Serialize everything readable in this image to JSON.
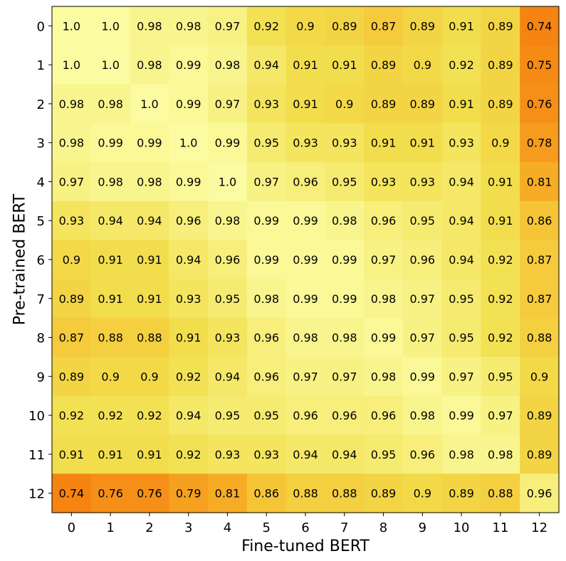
{
  "chart_data": {
    "type": "heatmap",
    "title": "",
    "xlabel": "Fine-tuned BERT",
    "ylabel": "Pre-trained BERT",
    "x_ticks": [
      "0",
      "1",
      "2",
      "3",
      "4",
      "5",
      "6",
      "7",
      "8",
      "9",
      "10",
      "11",
      "12"
    ],
    "y_ticks": [
      "0",
      "1",
      "2",
      "3",
      "4",
      "5",
      "6",
      "7",
      "8",
      "9",
      "10",
      "11",
      "12"
    ],
    "value_range": [
      0.74,
      1.0
    ],
    "colormap": [
      "#f58412",
      "#f7b529",
      "#f2df4e",
      "#fbfba1"
    ],
    "cell_labels": [
      [
        "1.0",
        "1.0",
        "0.98",
        "0.98",
        "0.97",
        "0.92",
        "0.9",
        "0.89",
        "0.87",
        "0.89",
        "0.91",
        "0.89",
        "0.74"
      ],
      [
        "1.0",
        "1.0",
        "0.98",
        "0.99",
        "0.98",
        "0.94",
        "0.91",
        "0.91",
        "0.89",
        "0.9",
        "0.92",
        "0.89",
        "0.75"
      ],
      [
        "0.98",
        "0.98",
        "1.0",
        "0.99",
        "0.97",
        "0.93",
        "0.91",
        "0.9",
        "0.89",
        "0.89",
        "0.91",
        "0.89",
        "0.76"
      ],
      [
        "0.98",
        "0.99",
        "0.99",
        "1.0",
        "0.99",
        "0.95",
        "0.93",
        "0.93",
        "0.91",
        "0.91",
        "0.93",
        "0.9",
        "0.78"
      ],
      [
        "0.97",
        "0.98",
        "0.98",
        "0.99",
        "1.0",
        "0.97",
        "0.96",
        "0.95",
        "0.93",
        "0.93",
        "0.94",
        "0.91",
        "0.81"
      ],
      [
        "0.93",
        "0.94",
        "0.94",
        "0.96",
        "0.98",
        "0.99",
        "0.99",
        "0.98",
        "0.96",
        "0.95",
        "0.94",
        "0.91",
        "0.86"
      ],
      [
        "0.9",
        "0.91",
        "0.91",
        "0.94",
        "0.96",
        "0.99",
        "0.99",
        "0.99",
        "0.97",
        "0.96",
        "0.94",
        "0.92",
        "0.87"
      ],
      [
        "0.89",
        "0.91",
        "0.91",
        "0.93",
        "0.95",
        "0.98",
        "0.99",
        "0.99",
        "0.98",
        "0.97",
        "0.95",
        "0.92",
        "0.87"
      ],
      [
        "0.87",
        "0.88",
        "0.88",
        "0.91",
        "0.93",
        "0.96",
        "0.98",
        "0.98",
        "0.99",
        "0.97",
        "0.95",
        "0.92",
        "0.88"
      ],
      [
        "0.89",
        "0.9",
        "0.9",
        "0.92",
        "0.94",
        "0.96",
        "0.97",
        "0.97",
        "0.98",
        "0.99",
        "0.97",
        "0.95",
        "0.9"
      ],
      [
        "0.92",
        "0.92",
        "0.92",
        "0.94",
        "0.95",
        "0.95",
        "0.96",
        "0.96",
        "0.96",
        "0.98",
        "0.99",
        "0.97",
        "0.89"
      ],
      [
        "0.91",
        "0.91",
        "0.91",
        "0.92",
        "0.93",
        "0.93",
        "0.94",
        "0.94",
        "0.95",
        "0.96",
        "0.98",
        "0.98",
        "0.89"
      ],
      [
        "0.74",
        "0.76",
        "0.76",
        "0.79",
        "0.81",
        "0.86",
        "0.88",
        "0.88",
        "0.89",
        "0.9",
        "0.89",
        "0.88",
        "0.96"
      ]
    ],
    "grid": false,
    "legend": "none"
  }
}
